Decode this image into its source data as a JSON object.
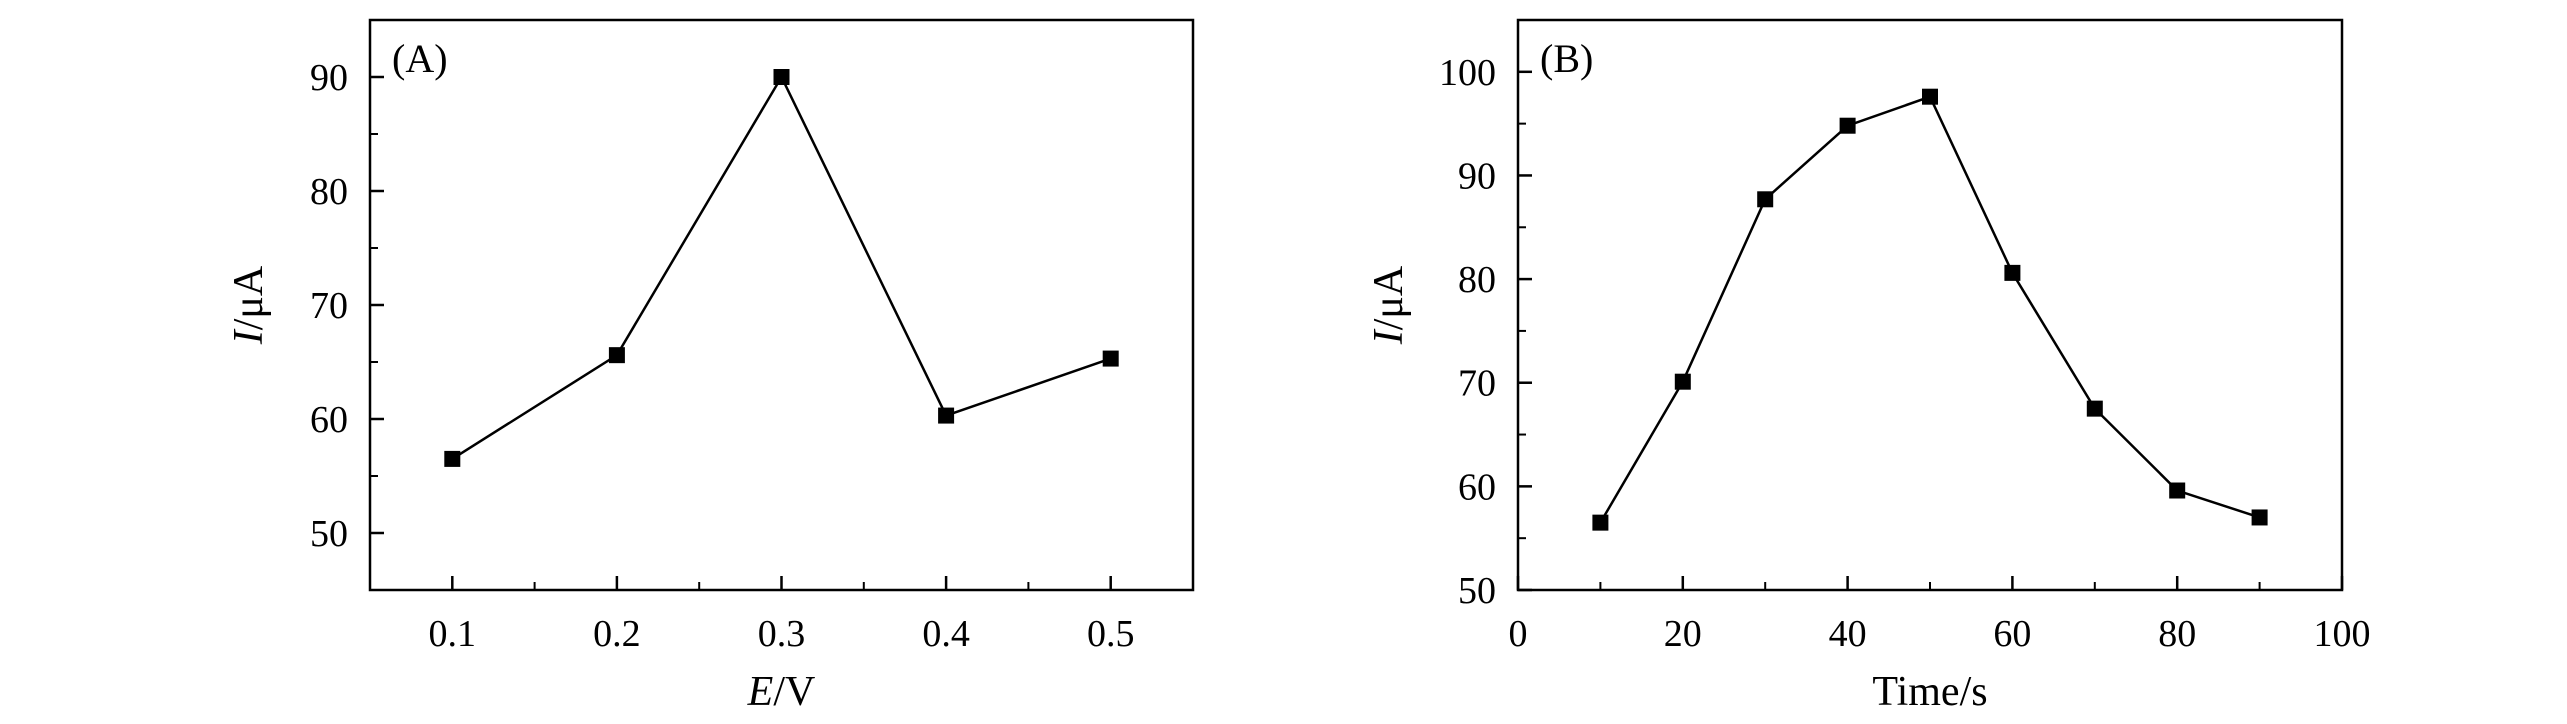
{
  "chart_data": [
    {
      "type": "line",
      "panel_label": "(A)",
      "xlabel_italic": "E",
      "xlabel_rest": "/V",
      "ylabel_italic": "I",
      "ylabel_rest": "/μA",
      "xlim": [
        0.05,
        0.55
      ],
      "ylim": [
        45,
        95
      ],
      "xticks": [
        0.1,
        0.2,
        0.3,
        0.4,
        0.5
      ],
      "xtick_labels": [
        "0.1",
        "0.2",
        "0.3",
        "0.4",
        "0.5"
      ],
      "yticks": [
        50,
        60,
        70,
        80,
        90
      ],
      "ytick_labels": [
        "50",
        "60",
        "70",
        "80",
        "90"
      ],
      "series": [
        {
          "x": [
            0.1,
            0.2,
            0.3,
            0.4,
            0.5
          ],
          "values": [
            56.5,
            65.6,
            90.0,
            60.3,
            65.3
          ]
        }
      ],
      "color": "#000000",
      "marker": "square",
      "grid": false
    },
    {
      "type": "line",
      "panel_label": "(B)",
      "xlabel_italic": "",
      "xlabel_rest": "Time/s",
      "ylabel_italic": "I",
      "ylabel_rest": "/μA",
      "xlim": [
        0,
        100
      ],
      "ylim": [
        50,
        105
      ],
      "xticks": [
        0,
        20,
        40,
        60,
        80,
        100
      ],
      "xtick_labels": [
        "0",
        "20",
        "40",
        "60",
        "80",
        "100"
      ],
      "yticks": [
        50,
        60,
        70,
        80,
        90,
        100
      ],
      "ytick_labels": [
        "50",
        "60",
        "70",
        "80",
        "90",
        "100"
      ],
      "series": [
        {
          "x": [
            10,
            20,
            30,
            40,
            50,
            60,
            70,
            80,
            90
          ],
          "values": [
            56.5,
            70.1,
            87.7,
            94.8,
            97.6,
            80.6,
            67.5,
            59.6,
            57.0
          ]
        }
      ],
      "color": "#000000",
      "marker": "square",
      "grid": false
    }
  ]
}
